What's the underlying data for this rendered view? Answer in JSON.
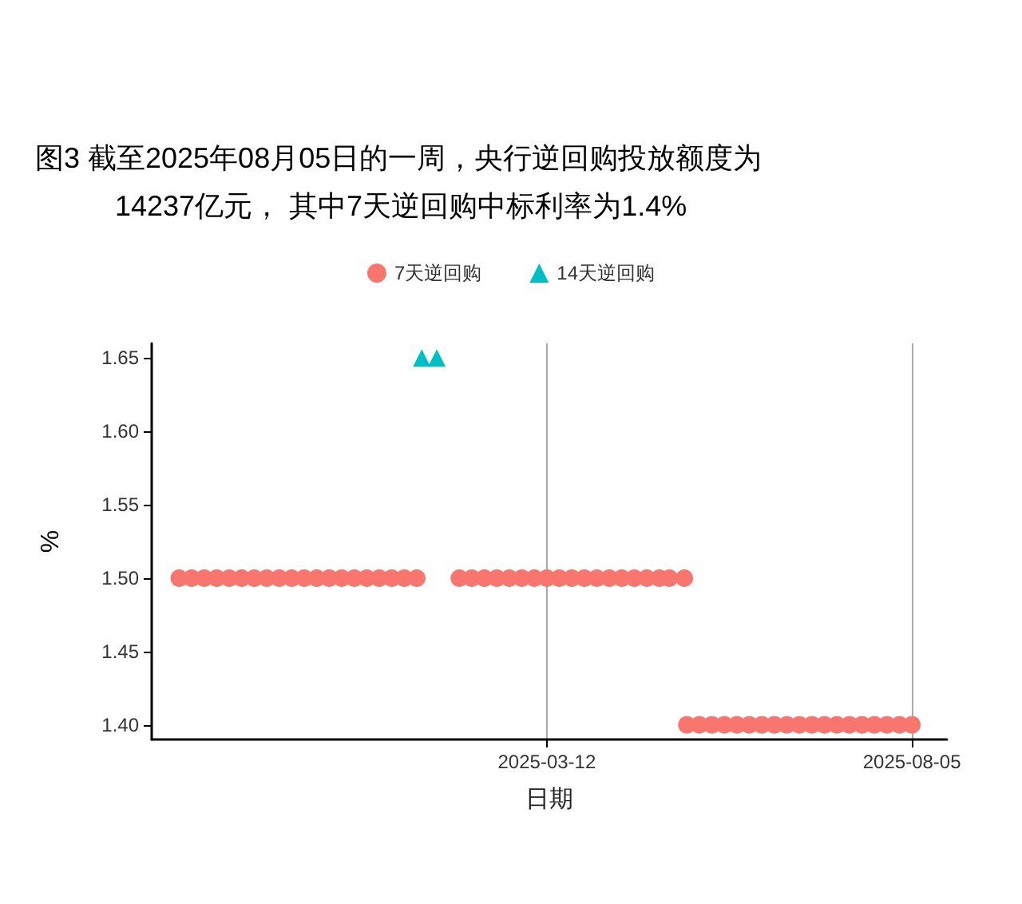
{
  "chart_data": {
    "type": "scatter",
    "title": "图3  截至2025年08月05日的一周，央行逆回购投放额度为\n14237亿元， 其中7天逆回购中标利率为1.4%",
    "xlabel": "日期",
    "ylabel": "%",
    "xlim": [
      "2024-10-05",
      "2025-08-19"
    ],
    "xticks": [
      "2025-03-12",
      "2025-08-05"
    ],
    "ylim": [
      1.39,
      1.66
    ],
    "yticks": [
      {
        "value": 1.4,
        "label": "1.40"
      },
      1.45,
      {
        "value": 1.5,
        "label": "1.50"
      },
      1.55,
      {
        "value": 1.6,
        "label": "1.60"
      },
      1.65
    ],
    "grid": "x",
    "legend": "top",
    "series": [
      {
        "name": "7天逆回购",
        "color": "#f8766d",
        "marker": "circle",
        "x": [
          "2024-10-16",
          "2024-10-21",
          "2024-10-26",
          "2024-10-31",
          "2024-11-05",
          "2024-11-10",
          "2024-11-15",
          "2024-11-20",
          "2024-11-25",
          "2024-11-30",
          "2024-12-05",
          "2024-12-10",
          "2024-12-15",
          "2024-12-20",
          "2024-12-25",
          "2024-12-30",
          "2025-01-04",
          "2025-01-09",
          "2025-01-14",
          "2025-01-19",
          "2025-02-05",
          "2025-02-10",
          "2025-02-15",
          "2025-02-20",
          "2025-02-25",
          "2025-03-02",
          "2025-03-07",
          "2025-03-12",
          "2025-03-17",
          "2025-03-22",
          "2025-03-27",
          "2025-04-01",
          "2025-04-06",
          "2025-04-11",
          "2025-04-16",
          "2025-04-21",
          "2025-04-26",
          "2025-04-30",
          "2025-05-06",
          "2025-05-07",
          "2025-05-12",
          "2025-05-17",
          "2025-05-22",
          "2025-05-27",
          "2025-06-01",
          "2025-06-06",
          "2025-06-11",
          "2025-06-16",
          "2025-06-21",
          "2025-06-26",
          "2025-07-01",
          "2025-07-06",
          "2025-07-11",
          "2025-07-16",
          "2025-07-21",
          "2025-07-26",
          "2025-07-31",
          "2025-08-05"
        ],
        "values": [
          1.5,
          1.5,
          1.5,
          1.5,
          1.5,
          1.5,
          1.5,
          1.5,
          1.5,
          1.5,
          1.5,
          1.5,
          1.5,
          1.5,
          1.5,
          1.5,
          1.5,
          1.5,
          1.5,
          1.5,
          1.5,
          1.5,
          1.5,
          1.5,
          1.5,
          1.5,
          1.5,
          1.5,
          1.5,
          1.5,
          1.5,
          1.5,
          1.5,
          1.5,
          1.5,
          1.5,
          1.5,
          1.5,
          1.5,
          1.4,
          1.4,
          1.4,
          1.4,
          1.4,
          1.4,
          1.4,
          1.4,
          1.4,
          1.4,
          1.4,
          1.4,
          1.4,
          1.4,
          1.4,
          1.4,
          1.4,
          1.4,
          1.4
        ]
      },
      {
        "name": "14天逆回购",
        "color": "#00bfc4",
        "marker": "triangle",
        "x": [
          "2025-01-21",
          "2025-01-27"
        ],
        "values": [
          1.65,
          1.65
        ]
      }
    ]
  }
}
